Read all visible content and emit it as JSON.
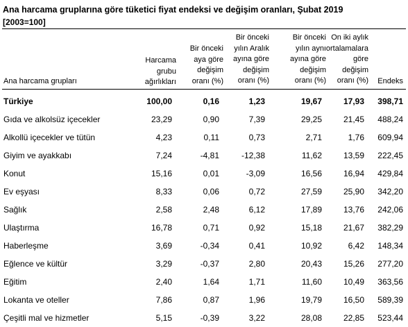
{
  "title": "Ana harcama gruplarına göre tüketici fiyat endeksi ve değişim oranları, Şubat 2019",
  "subtitle": "[2003=100]",
  "headers": {
    "group": "Ana harcama grupları",
    "weight": "Harcama\ngrubu\nağırlıkları",
    "prev_month": "Bir önceki\naya göre\ndeğişim\noranı (%)",
    "prev_dec": "Bir önceki\nyılın Aralık\nayına göre\ndeğişim\noranı (%)",
    "prev_year": "Bir önceki\nyılın aynı\nayına göre\ndeğişim\noranı (%)",
    "twelve_month": "On iki aylık\nortalamalara\ngöre\ndeğişim\noranı (%)",
    "index": "Endeks"
  },
  "rows": [
    {
      "name": "Türkiye",
      "weight": "100,00",
      "prev_month": "0,16",
      "prev_dec": "1,23",
      "prev_year": "19,67",
      "twelve_month": "17,93",
      "index": "398,71"
    },
    {
      "name": "Gıda ve alkolsüz içecekler",
      "weight": "23,29",
      "prev_month": "0,90",
      "prev_dec": "7,39",
      "prev_year": "29,25",
      "twelve_month": "21,45",
      "index": "488,24"
    },
    {
      "name": "Alkollü içecekler ve tütün",
      "weight": "4,23",
      "prev_month": "0,11",
      "prev_dec": "0,73",
      "prev_year": "2,71",
      "twelve_month": "1,76",
      "index": "609,94"
    },
    {
      "name": "Giyim ve ayakkabı",
      "weight": "7,24",
      "prev_month": "-4,81",
      "prev_dec": "-12,38",
      "prev_year": "11,62",
      "twelve_month": "13,59",
      "index": "222,45"
    },
    {
      "name": "Konut",
      "weight": "15,16",
      "prev_month": "0,01",
      "prev_dec": "-3,09",
      "prev_year": "16,56",
      "twelve_month": "16,94",
      "index": "429,84"
    },
    {
      "name": "Ev eşyası",
      "weight": "8,33",
      "prev_month": "0,06",
      "prev_dec": "0,72",
      "prev_year": "27,59",
      "twelve_month": "25,90",
      "index": "342,20"
    },
    {
      "name": "Sağlık",
      "weight": "2,58",
      "prev_month": "2,48",
      "prev_dec": "6,12",
      "prev_year": "17,89",
      "twelve_month": "13,76",
      "index": "242,06"
    },
    {
      "name": "Ulaştırma",
      "weight": "16,78",
      "prev_month": "0,71",
      "prev_dec": "0,92",
      "prev_year": "15,18",
      "twelve_month": "21,67",
      "index": "382,29"
    },
    {
      "name": "Haberleşme",
      "weight": "3,69",
      "prev_month": "-0,34",
      "prev_dec": "0,41",
      "prev_year": "10,92",
      "twelve_month": "6,42",
      "index": "148,34"
    },
    {
      "name": "Eğlence ve kültür",
      "weight": "3,29",
      "prev_month": "-0,37",
      "prev_dec": "2,80",
      "prev_year": "20,43",
      "twelve_month": "15,26",
      "index": "277,20"
    },
    {
      "name": "Eğitim",
      "weight": "2,40",
      "prev_month": "1,64",
      "prev_dec": "1,71",
      "prev_year": "11,60",
      "twelve_month": "10,49",
      "index": "363,56"
    },
    {
      "name": "Lokanta ve oteller",
      "weight": "7,86",
      "prev_month": "0,87",
      "prev_dec": "1,96",
      "prev_year": "19,79",
      "twelve_month": "16,50",
      "index": "589,39"
    },
    {
      "name": "Çeşitli mal ve hizmetler",
      "weight": "5,15",
      "prev_month": "-0,39",
      "prev_dec": "3,22",
      "prev_year": "28,08",
      "twelve_month": "22,85",
      "index": "523,44"
    }
  ]
}
